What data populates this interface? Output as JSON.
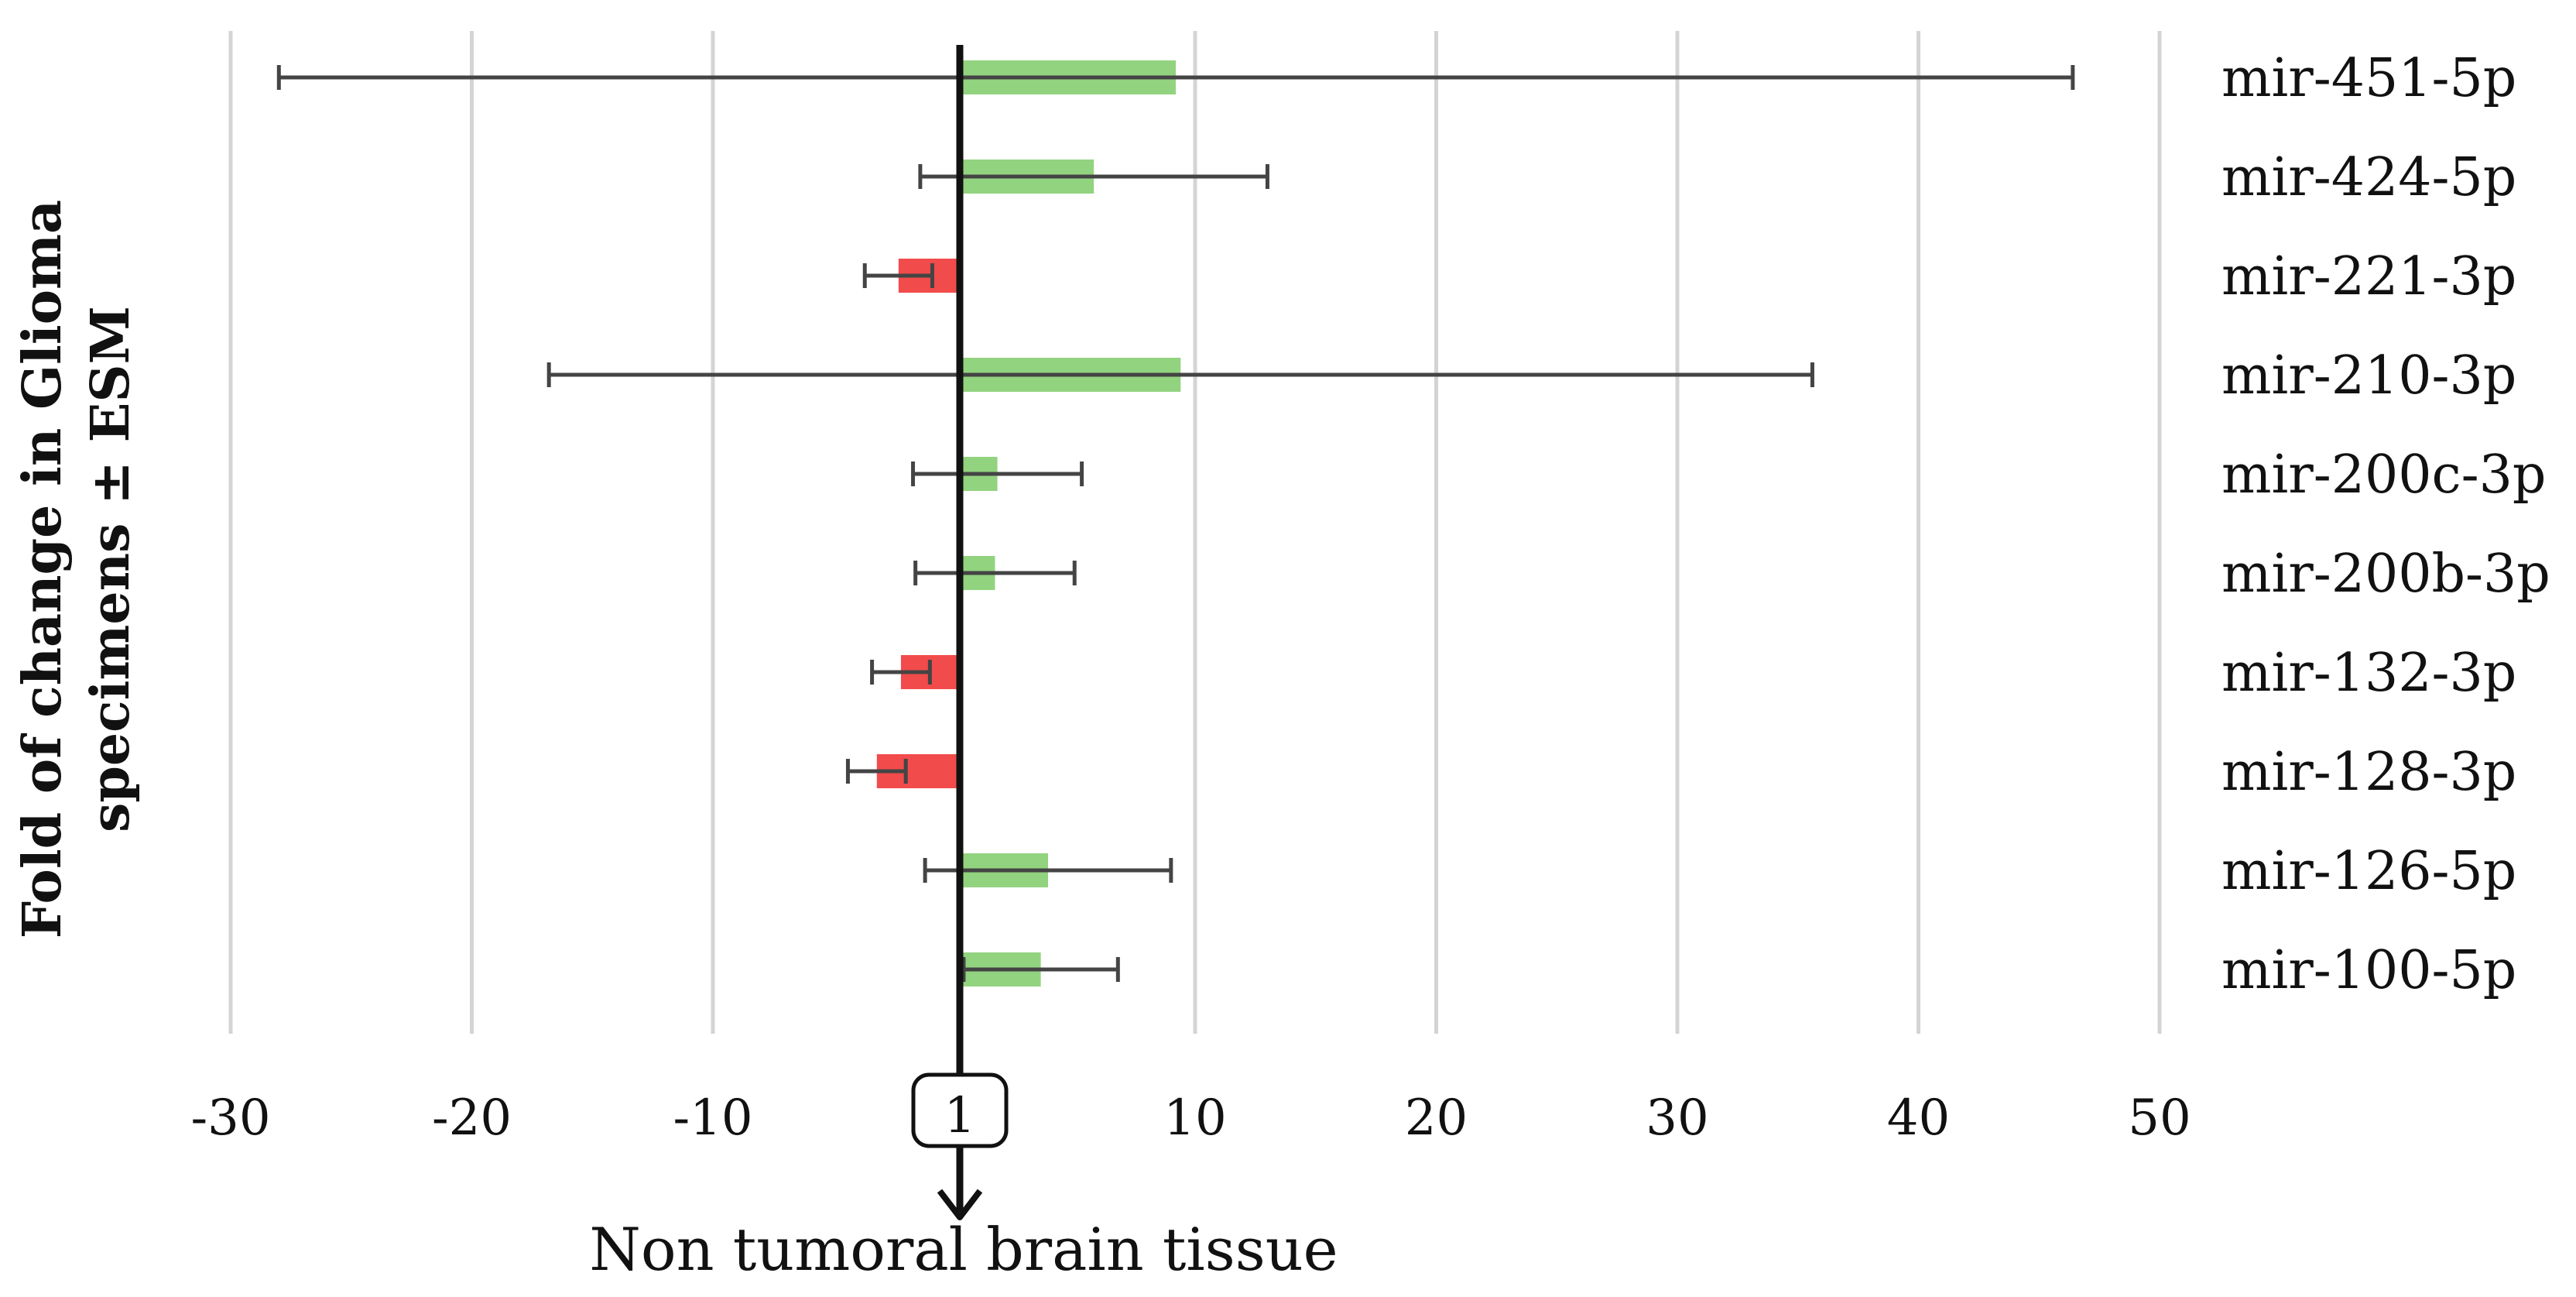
{
  "chart_data": {
    "type": "bar",
    "orientation": "horizontal",
    "ylabel_lines": [
      "Fold of change in Glioma",
      "specimens ± ESM"
    ],
    "xlabel": "Non tumoral brain tissue",
    "baseline_label": "1",
    "xlim": [
      -30,
      50
    ],
    "xticks": [
      -30,
      -20,
      -10,
      10,
      20,
      30,
      40,
      50
    ],
    "grid": true,
    "categories": [
      "mir-451-5p",
      "mir-424-5p",
      "mir-221-3p",
      "mir-210-3p",
      "mir-200c-3p",
      "mir-200b-3p",
      "mir-132-3p",
      "mir-128-3p",
      "mir-126-5p",
      "mir-100-5p"
    ],
    "values": [
      9.2,
      5.8,
      -2.3,
      9.4,
      1.8,
      1.7,
      -2.2,
      -3.2,
      3.9,
      3.6
    ],
    "error": [
      37.2,
      7.2,
      1.4,
      26.2,
      3.5,
      3.3,
      1.2,
      1.2,
      5.1,
      3.2
    ],
    "colors": {
      "positive": "#92d37f",
      "negative": "#f24b4b",
      "error_bar": "#444444",
      "grid": "#d4d4d4",
      "axis": "#111111"
    }
  }
}
